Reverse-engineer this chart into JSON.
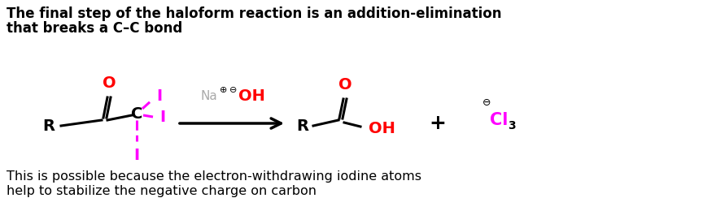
{
  "title_line1": "The final step of the haloform reaction is an addition-elimination",
  "title_line2": "that breaks a C–C bond",
  "footer_line1": "This is possible because the electron-withdrawing iodine atoms",
  "footer_line2": "help to stabilize the negative charge on carbon",
  "title_fontsize": 12.0,
  "footer_fontsize": 11.5,
  "bg_color": "#ffffff",
  "black": "#000000",
  "red": "#ff0000",
  "magenta": "#ff00ff",
  "gray": "#aaaaaa"
}
